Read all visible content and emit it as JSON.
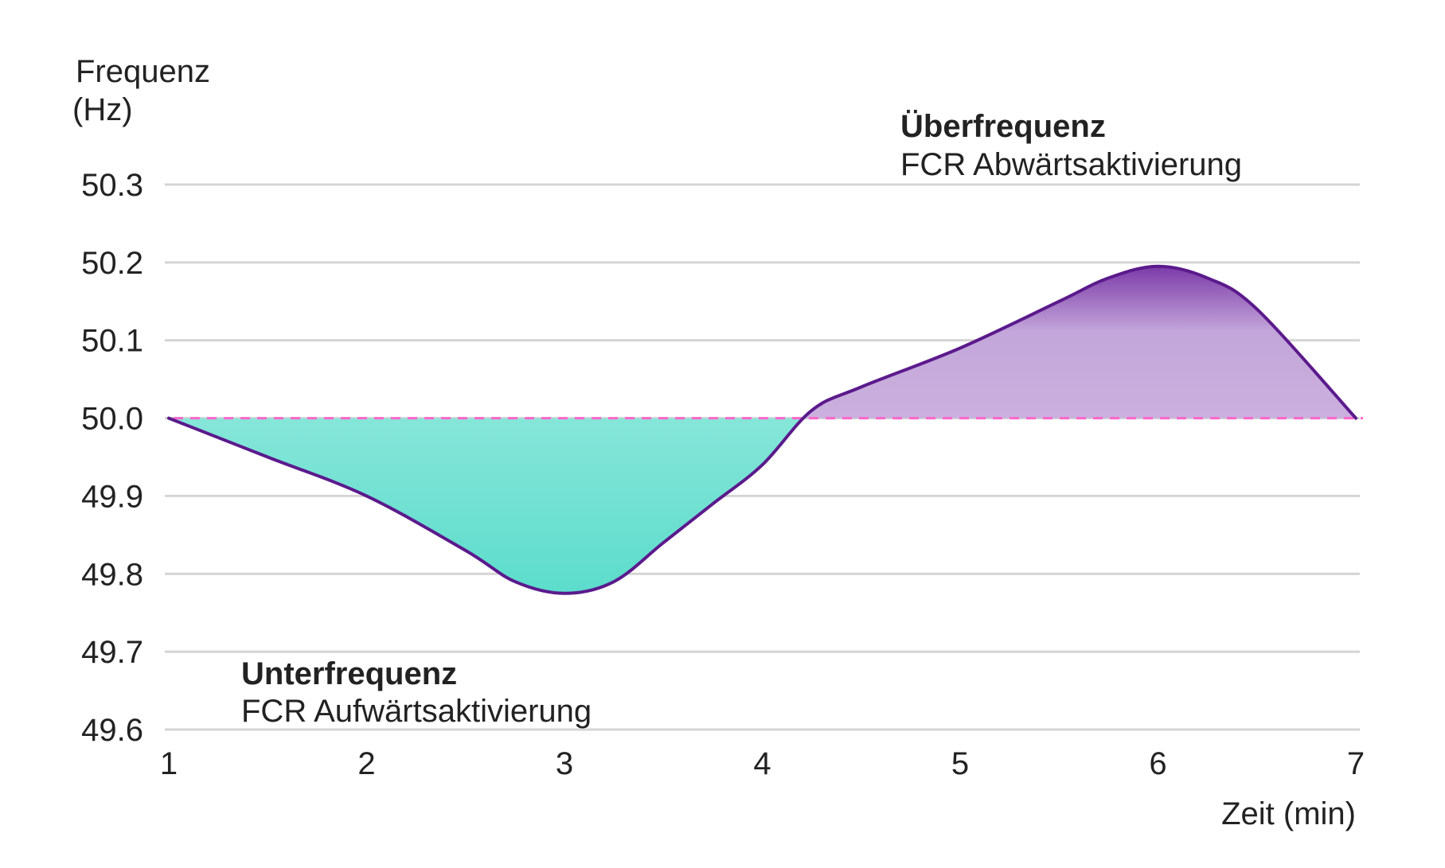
{
  "chart_data": {
    "type": "area",
    "ylabel_line1": "Frequenz",
    "ylabel_line2": "(Hz)",
    "xlabel": "Zeit (min)",
    "ylim": [
      49.6,
      50.3
    ],
    "xlim": [
      1,
      7
    ],
    "y_ticks": [
      "50.3",
      "50.2",
      "50.1",
      "50.0",
      "49.9",
      "49.8",
      "49.7",
      "49.6"
    ],
    "x_ticks": [
      "1",
      "2",
      "3",
      "4",
      "5",
      "6",
      "7"
    ],
    "grid": true,
    "reference_line": 50.0,
    "series": [
      {
        "x": [
          1.0,
          1.5,
          2.0,
          2.5,
          2.75,
          3.0,
          3.25,
          3.5,
          3.75,
          4.0,
          4.25,
          4.5,
          5.0,
          5.5,
          5.75,
          6.0,
          6.25,
          6.5,
          7.0
        ],
        "y": [
          50.0,
          49.95,
          49.9,
          49.83,
          49.79,
          49.775,
          49.79,
          49.84,
          49.89,
          49.94,
          50.01,
          50.04,
          50.09,
          50.15,
          50.18,
          50.195,
          50.18,
          50.14,
          50.0
        ]
      }
    ],
    "annotations": {
      "under_title": "Unterfrequenz",
      "under_sub": "FCR Aufwärtsaktivierung",
      "over_title": "Überfrequenz",
      "over_sub": "FCR Abwärtsaktivierung"
    },
    "colors": {
      "line": "#5b1a8c",
      "reference": "#ff66cc",
      "under_fill_top": "#aaeee4",
      "under_fill_bottom": "#5cdccc",
      "over_fill_top": "#7b3aa8",
      "over_fill_bottom": "#d9c4e6",
      "grid": "#d4d4d4",
      "text": "#222222"
    }
  }
}
